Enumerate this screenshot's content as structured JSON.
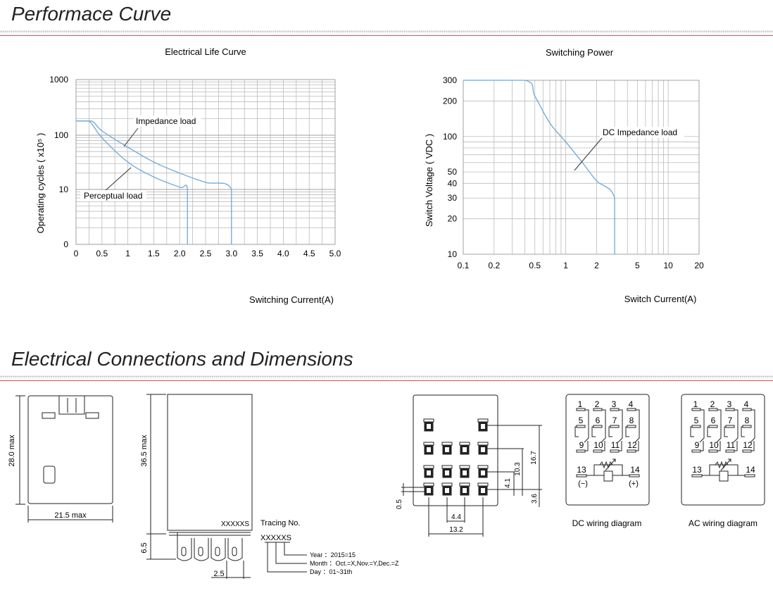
{
  "sections": {
    "performance_title": "Performace Curve",
    "connections_title": "Electrical Connections and Dimensions"
  },
  "chart_data": [
    {
      "type": "line",
      "title": "Electrical Life Curve",
      "xlabel": "Switching Current(A)",
      "ylabel": "Operating cycles ( x10⁵ )",
      "x_ticks": [
        "0",
        "0.5",
        "1",
        "1.5",
        "2.0",
        "2.5",
        "3.0",
        "3.5",
        "4.0",
        "4.5",
        "5.0"
      ],
      "y_ticks": [
        "0",
        "10",
        "100",
        "1000"
      ],
      "xlim": [
        0,
        5
      ],
      "y_scale": "log",
      "grid": true,
      "annotations": [
        "Impedance load",
        "Perceptual load"
      ],
      "series": [
        {
          "name": "Impedance load",
          "x": [
            0,
            0.3,
            0.5,
            1.0,
            1.5,
            2.0,
            2.5,
            3.0,
            3.0
          ],
          "y": [
            180,
            180,
            120,
            60,
            32,
            20,
            13.5,
            10,
            0
          ]
        },
        {
          "name": "Perceptual load",
          "x": [
            0,
            0.25,
            0.5,
            1.0,
            1.5,
            2.0,
            2.15,
            2.15
          ],
          "y": [
            180,
            180,
            90,
            32,
            17,
            11,
            10,
            0
          ]
        }
      ]
    },
    {
      "type": "line",
      "title": "Switching Power",
      "xlabel": "Switch Current(A)",
      "ylabel": "Switch Voltage ( VDC )",
      "x_scale": "log",
      "y_scale": "log",
      "x_ticks": [
        "0.1",
        "0.2",
        "0.5",
        "1",
        "2",
        "5",
        "10",
        "20"
      ],
      "y_ticks": [
        "10",
        "20",
        "30",
        "40",
        "50",
        "100",
        "200",
        "300"
      ],
      "xlim": [
        0.1,
        20
      ],
      "ylim": [
        10,
        300
      ],
      "grid": true,
      "annotations": [
        "DC Impedance load"
      ],
      "series": [
        {
          "name": "DC Impedance load",
          "x": [
            0.1,
            0.4,
            0.5,
            0.7,
            1.0,
            1.5,
            2.0,
            3.0,
            3.0
          ],
          "y": [
            300,
            300,
            220,
            130,
            90,
            58,
            42,
            30,
            10
          ]
        }
      ]
    }
  ],
  "dimensions": {
    "height_28": "28.0 max",
    "width_21": "21.5 max",
    "height_36": "36.5 max",
    "pin_65": "6.5",
    "pitch_25": "2.5",
    "tracing_label": "Tracing No.",
    "tracing_code_body": "XXXXXS",
    "tracing_code": "XXXXXS",
    "tracing_year": "Year  ：2015=15",
    "tracing_month": "Month ：Oct.=X,Nov.=Y,Dec.=Z",
    "tracing_day": "Day   ：01~31th",
    "d_167": "16.7",
    "d_103": "10.3",
    "d_41": "4.1",
    "d_36": "3.6",
    "d_05": "0.5",
    "d_44": "4.4",
    "d_132": "13.2"
  },
  "wiring": {
    "dc_caption": "DC wiring diagram",
    "ac_caption": "AC wiring diagram",
    "terminals_top": [
      "1",
      "2",
      "3",
      "4"
    ],
    "terminals_mid": [
      "5",
      "6",
      "7",
      "8"
    ],
    "terminals_bot": [
      "9",
      "10",
      "11",
      "12"
    ],
    "coil_left": "13",
    "coil_right": "14",
    "minus": "(−)",
    "plus": "(+)"
  }
}
